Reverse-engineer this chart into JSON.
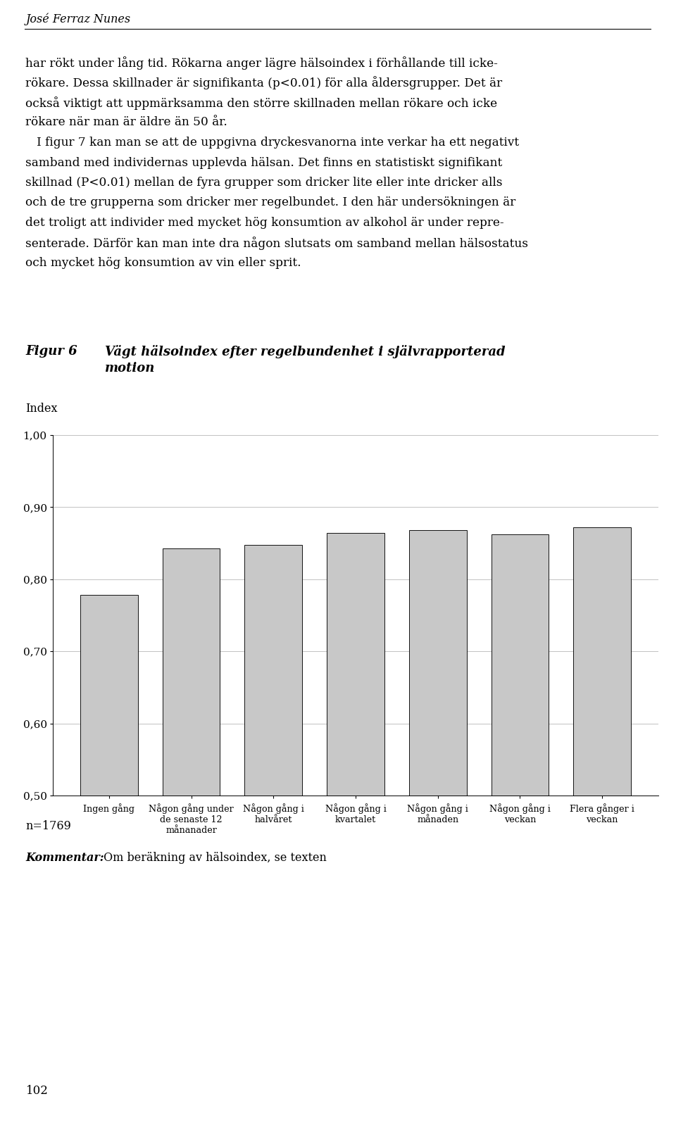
{
  "figure_label": "Figur 6",
  "figure_title": "Vägt hälsoindex efter regelbundenhet i självrapporterad\nmotion",
  "ylabel": "Index",
  "categories": [
    "Ingen gång",
    "Någon gång under\nde senaste 12\nmånanader",
    "Någon gång i\nhalvåret",
    "Någon gång i\nkvartalet",
    "Någon gång i\nmånaden",
    "Någon gång i\nveckan",
    "Flera gånger i\nveckan"
  ],
  "values": [
    0.778,
    0.843,
    0.848,
    0.864,
    0.868,
    0.862,
    0.872
  ],
  "bar_color": "#c8c8c8",
  "bar_edgecolor": "#111111",
  "ylim": [
    0.5,
    1.0
  ],
  "yticks": [
    0.5,
    0.6,
    0.7,
    0.8,
    0.9,
    1.0
  ],
  "ytick_labels": [
    "0,50",
    "0,60",
    "0,70",
    "0,80",
    "0,90",
    "1,00"
  ],
  "n_label": "n=1769",
  "comment_bold": "Kommentar:",
  "comment_text": " Om beräkning av hälsoindex, se texten",
  "header_name": "José Ferraz Nunes",
  "body_lines": [
    "har rökt under lång tid. Rökarna anger lägre hälsoindex i förhållande till icke-",
    "rökare. Dessa skillnader är signifikanta (p<0.01) för alla åldersgrupper. Det är",
    "också viktigt att uppmärksamma den större skillnaden mellan rökare och icke",
    "rökare när man är äldre än 50 år.",
    "   I figur 7 kan man se att de uppgivna dryckesvanorna inte verkar ha ett negativt",
    "samband med individernas upplevda hälsan. Det finns en statistiskt signifikant",
    "skillnad (P<0.01) mellan de fyra grupper som dricker lite eller inte dricker alls",
    "och de tre grupperna som dricker mer regelbundet. I den här undersökningen är",
    "det troligt att individer med mycket hög konsumtion av alkohol är under repre-",
    "senterade. Därför kan man inte dra någon slutsats om samband mellan hälsostatus",
    "och mycket hög konsumtion av vin eller sprit."
  ],
  "page_number": "102",
  "background_color": "#ffffff",
  "fig_width": 9.6,
  "fig_height": 15.98,
  "dpi": 100
}
